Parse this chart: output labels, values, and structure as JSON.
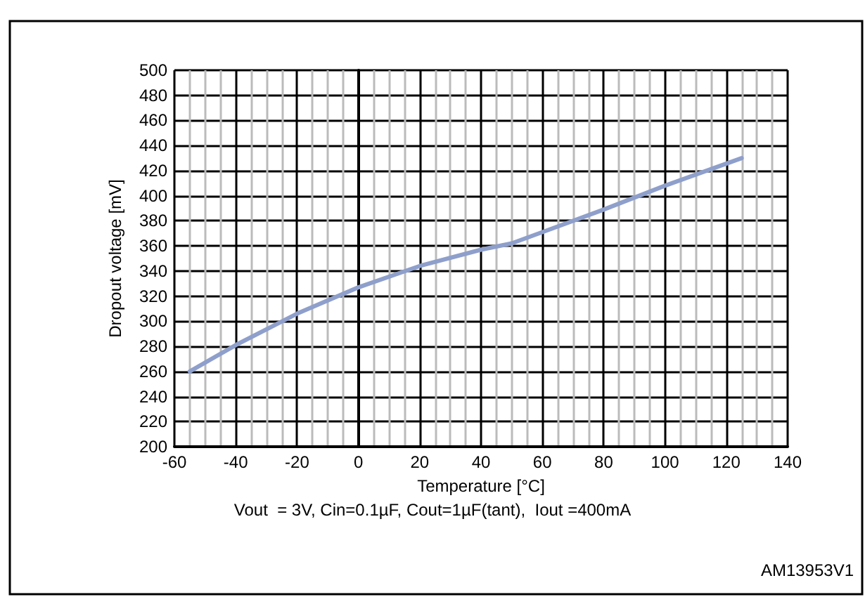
{
  "chart_data": {
    "type": "line",
    "xlabel": "Temperature [°C]",
    "ylabel": "Dropout voltage [mV]",
    "annotations": [
      "Vout  = 3V, Cin=0.1µF, Cout=1µF(tant),  Iout =400mA",
      "AM13953V1"
    ],
    "xlim": [
      -60,
      140
    ],
    "xticks": [
      -60,
      -40,
      -20,
      0,
      20,
      40,
      60,
      80,
      100,
      120,
      140
    ],
    "ylim": [
      200,
      500
    ],
    "yticks": [
      200,
      220,
      240,
      260,
      280,
      300,
      320,
      340,
      360,
      380,
      400,
      420,
      440,
      460,
      480,
      500
    ],
    "grid": true,
    "marker": "none",
    "line_style": "solid",
    "series": [
      {
        "color": "#8e9fcb",
        "x": [
          -55,
          -40,
          -20,
          0,
          20,
          40,
          50,
          60,
          80,
          100,
          125
        ],
        "values": [
          260,
          281,
          306,
          327,
          344,
          357,
          362,
          371,
          389,
          408,
          430
        ]
      }
    ]
  }
}
